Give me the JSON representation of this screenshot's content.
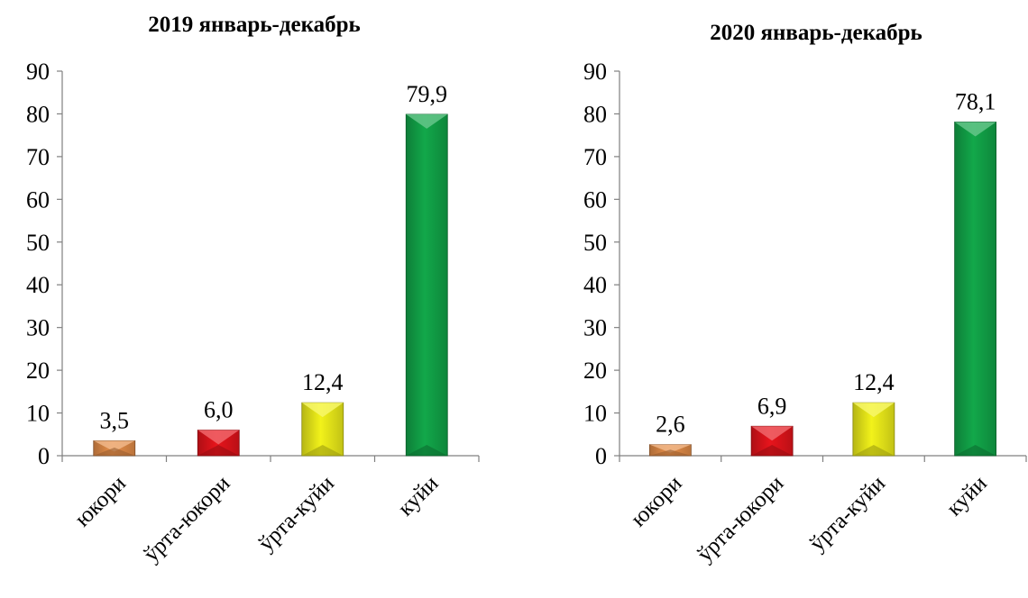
{
  "chart_data": [
    {
      "type": "bar",
      "title": "2019 январь-декабрь",
      "xlabel": "",
      "ylabel": "",
      "categories": [
        "юкори",
        "ўрта-юкори",
        "ўрта-куйи",
        "куйи"
      ],
      "values": [
        3.5,
        6.0,
        12.4,
        79.9
      ],
      "data_labels": [
        "3,5",
        "6,0",
        "12,4",
        "79,9"
      ],
      "colors": [
        "#E8904A",
        "#E8141C",
        "#F2F21A",
        "#12A84A"
      ],
      "ylim": [
        0,
        90
      ],
      "yticks": [
        0,
        10,
        20,
        30,
        40,
        50,
        60,
        70,
        80,
        90
      ],
      "grid": false,
      "legend": "none"
    },
    {
      "type": "bar",
      "title": "2020 январь-декабрь",
      "xlabel": "",
      "ylabel": "",
      "categories": [
        "юкори",
        "ўрта-юкори",
        "ўрта-куйи",
        "куйи"
      ],
      "values": [
        2.6,
        6.9,
        12.4,
        78.1
      ],
      "data_labels": [
        "2,6",
        "6,9",
        "12,4",
        "78,1"
      ],
      "colors": [
        "#E8904A",
        "#E8141C",
        "#F2F21A",
        "#12A84A"
      ],
      "ylim": [
        0,
        90
      ],
      "yticks": [
        0,
        10,
        20,
        30,
        40,
        50,
        60,
        70,
        80,
        90
      ],
      "grid": false,
      "legend": "none"
    }
  ]
}
